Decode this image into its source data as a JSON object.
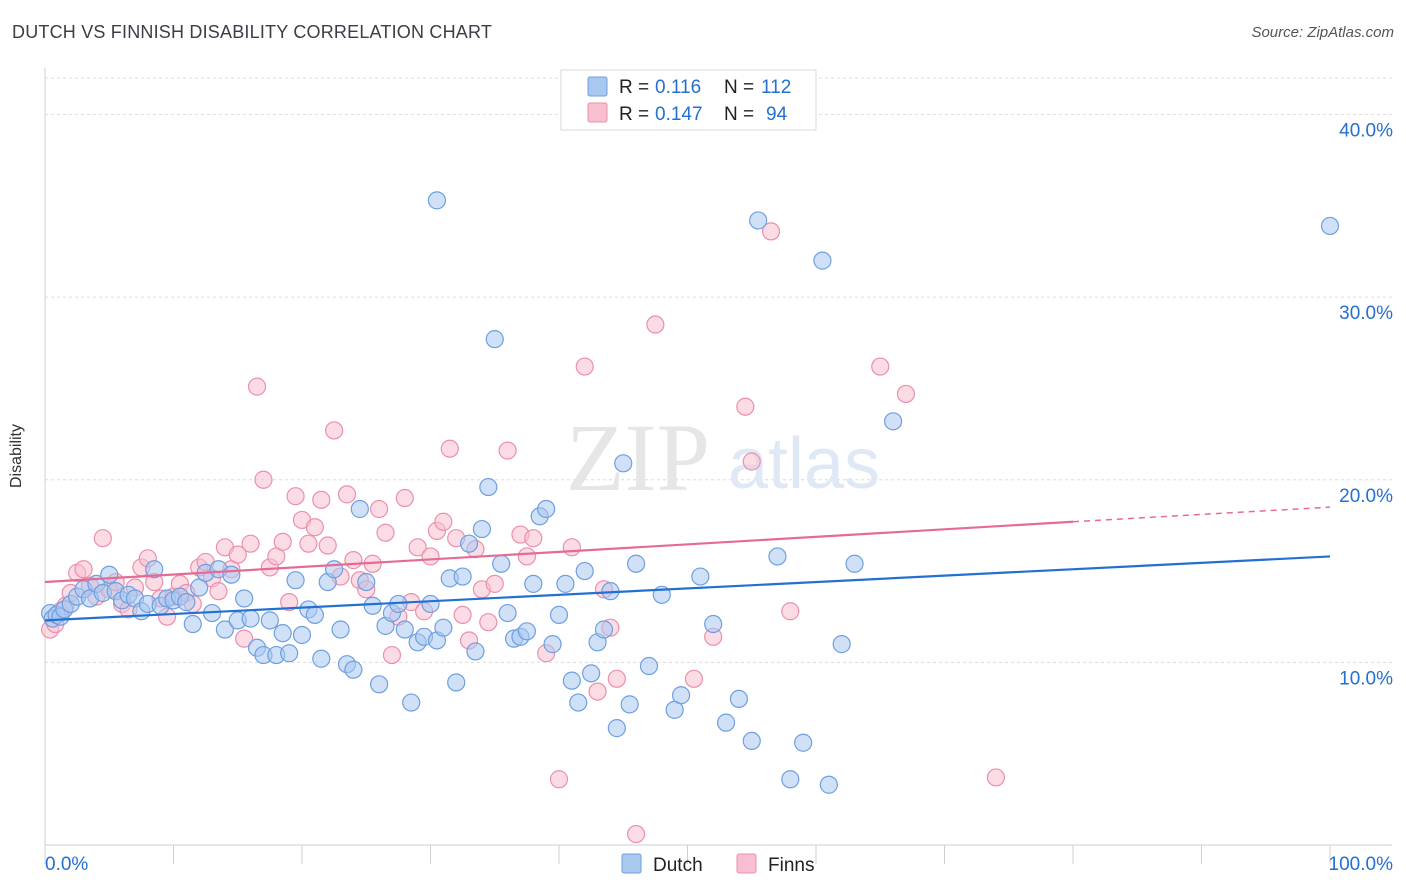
{
  "header": {
    "title": "DUTCH VS FINNISH DISABILITY CORRELATION CHART",
    "source": "Source: ZipAtlas.com"
  },
  "watermark": {
    "part1": "ZIP",
    "part2": "atlas"
  },
  "chart_data": {
    "type": "scatter",
    "title": "DUTCH VS FINNISH DISABILITY CORRELATION CHART",
    "xlabel": "",
    "ylabel": "Disability",
    "xlim": [
      0,
      100
    ],
    "ylim": [
      0,
      42
    ],
    "x_tick_labels": [
      "0.0%",
      "100.0%"
    ],
    "y_ticks": [
      10,
      20,
      30,
      40
    ],
    "y_tick_labels": [
      "10.0%",
      "20.0%",
      "30.0%",
      "40.0%"
    ],
    "grid": true,
    "legend_position": "top-center",
    "bottom_legend": [
      "Dutch",
      "Finns"
    ],
    "stats": [
      {
        "series": "Dutch",
        "r_label": "R =",
        "r": "0.116",
        "n_label": "N =",
        "n": "112"
      },
      {
        "series": "Finns",
        "r_label": "R =",
        "r": "0.147",
        "n_label": "N =",
        "n": "94"
      }
    ],
    "series": [
      {
        "name": "Dutch",
        "color": "#a9c8f0",
        "stroke": "#6e9fe0",
        "trend_color": "#2470d0",
        "trend": {
          "x": [
            0,
            100
          ],
          "y": [
            12.3,
            15.8
          ]
        },
        "points": [
          [
            0.4,
            12.7
          ],
          [
            0.6,
            12.4
          ],
          [
            0.9,
            12.6
          ],
          [
            1.2,
            12.5
          ],
          [
            1.5,
            12.9
          ],
          [
            2.0,
            13.2
          ],
          [
            2.5,
            13.6
          ],
          [
            3.0,
            14.0
          ],
          [
            3.5,
            13.5
          ],
          [
            4.0,
            14.3
          ],
          [
            4.5,
            13.8
          ],
          [
            5.0,
            14.8
          ],
          [
            5.5,
            13.9
          ],
          [
            6.0,
            13.4
          ],
          [
            6.5,
            13.7
          ],
          [
            7.0,
            13.5
          ],
          [
            7.5,
            12.8
          ],
          [
            8.0,
            13.2
          ],
          [
            8.5,
            15.1
          ],
          [
            9.0,
            13.1
          ],
          [
            9.5,
            13.5
          ],
          [
            10.0,
            13.4
          ],
          [
            10.5,
            13.6
          ],
          [
            11.0,
            13.3
          ],
          [
            11.5,
            12.1
          ],
          [
            12.0,
            14.1
          ],
          [
            12.5,
            14.9
          ],
          [
            13.0,
            12.7
          ],
          [
            13.5,
            15.1
          ],
          [
            14.0,
            11.8
          ],
          [
            14.5,
            14.8
          ],
          [
            15.0,
            12.3
          ],
          [
            15.5,
            13.5
          ],
          [
            16.0,
            12.4
          ],
          [
            16.5,
            10.8
          ],
          [
            17.0,
            10.4
          ],
          [
            17.5,
            12.3
          ],
          [
            18.0,
            10.4
          ],
          [
            18.5,
            11.6
          ],
          [
            19.0,
            10.5
          ],
          [
            19.5,
            14.5
          ],
          [
            20.0,
            11.5
          ],
          [
            20.5,
            12.9
          ],
          [
            21.0,
            12.6
          ],
          [
            21.5,
            10.2
          ],
          [
            22.0,
            14.4
          ],
          [
            22.5,
            15.1
          ],
          [
            23.0,
            11.8
          ],
          [
            23.5,
            9.9
          ],
          [
            24.0,
            9.6
          ],
          [
            24.5,
            18.4
          ],
          [
            25.0,
            14.4
          ],
          [
            25.5,
            13.1
          ],
          [
            26.0,
            8.8
          ],
          [
            26.5,
            12.0
          ],
          [
            27.0,
            12.7
          ],
          [
            27.5,
            13.2
          ],
          [
            28.0,
            11.8
          ],
          [
            28.5,
            7.8
          ],
          [
            29.0,
            11.1
          ],
          [
            29.5,
            11.4
          ],
          [
            30.0,
            13.2
          ],
          [
            30.5,
            11.2
          ],
          [
            31.0,
            11.9
          ],
          [
            31.5,
            14.6
          ],
          [
            32.0,
            8.9
          ],
          [
            32.5,
            14.7
          ],
          [
            33.0,
            16.5
          ],
          [
            33.5,
            10.6
          ],
          [
            34.0,
            17.3
          ],
          [
            34.5,
            19.6
          ],
          [
            35.0,
            27.7
          ],
          [
            35.5,
            15.4
          ],
          [
            36.0,
            12.7
          ],
          [
            36.5,
            11.3
          ],
          [
            37.0,
            11.4
          ],
          [
            37.5,
            11.7
          ],
          [
            38.0,
            14.3
          ],
          [
            38.5,
            18.0
          ],
          [
            39.0,
            18.4
          ],
          [
            39.5,
            11.0
          ],
          [
            40.0,
            12.6
          ],
          [
            40.5,
            14.3
          ],
          [
            41.0,
            9.0
          ],
          [
            41.5,
            7.8
          ],
          [
            42.0,
            15.0
          ],
          [
            42.5,
            9.4
          ],
          [
            43.0,
            11.1
          ],
          [
            43.5,
            11.8
          ],
          [
            44.0,
            13.9
          ],
          [
            44.5,
            6.4
          ],
          [
            45.0,
            20.9
          ],
          [
            45.5,
            7.7
          ],
          [
            46.0,
            15.4
          ],
          [
            47.0,
            9.8
          ],
          [
            48.0,
            13.7
          ],
          [
            49.0,
            7.4
          ],
          [
            49.5,
            8.2
          ],
          [
            51.0,
            14.7
          ],
          [
            52.0,
            12.1
          ],
          [
            53.0,
            6.7
          ],
          [
            54.0,
            8.0
          ],
          [
            55.0,
            5.7
          ],
          [
            57.0,
            15.8
          ],
          [
            58.0,
            3.6
          ],
          [
            59.0,
            5.6
          ],
          [
            61.0,
            3.3
          ],
          [
            62.0,
            11.0
          ],
          [
            63.0,
            15.4
          ],
          [
            66.0,
            23.2
          ],
          [
            55.5,
            34.2
          ],
          [
            30.5,
            35.3
          ],
          [
            60.5,
            32.0
          ],
          [
            100.0,
            33.9
          ]
        ]
      },
      {
        "name": "Finns",
        "color": "#f8bfd0",
        "stroke": "#ec8fac",
        "trend_color": "#e56b94",
        "trend": {
          "x": [
            0,
            80
          ],
          "y": [
            14.4,
            17.7
          ]
        },
        "trend_dashed": {
          "x": [
            80,
            100
          ],
          "y": [
            17.7,
            18.5
          ]
        },
        "points": [
          [
            0.4,
            11.8
          ],
          [
            0.8,
            12.1
          ],
          [
            1.2,
            12.8
          ],
          [
            1.6,
            13.1
          ],
          [
            2.0,
            13.8
          ],
          [
            2.5,
            14.9
          ],
          [
            3.0,
            15.1
          ],
          [
            3.5,
            14.2
          ],
          [
            4.0,
            13.6
          ],
          [
            4.5,
            16.8
          ],
          [
            5.0,
            14.0
          ],
          [
            5.5,
            14.4
          ],
          [
            6.0,
            13.2
          ],
          [
            6.5,
            12.9
          ],
          [
            7.0,
            14.1
          ],
          [
            7.5,
            15.2
          ],
          [
            8.0,
            15.7
          ],
          [
            8.5,
            14.4
          ],
          [
            9.0,
            13.5
          ],
          [
            9.5,
            12.5
          ],
          [
            10.0,
            13.6
          ],
          [
            10.5,
            14.3
          ],
          [
            11.0,
            13.8
          ],
          [
            11.5,
            13.2
          ],
          [
            12.0,
            15.2
          ],
          [
            12.5,
            15.5
          ],
          [
            13.0,
            14.6
          ],
          [
            13.5,
            13.9
          ],
          [
            14.0,
            16.3
          ],
          [
            14.5,
            15.1
          ],
          [
            15.0,
            15.9
          ],
          [
            15.5,
            11.3
          ],
          [
            16.0,
            16.5
          ],
          [
            16.5,
            25.1
          ],
          [
            17.0,
            20.0
          ],
          [
            17.5,
            15.2
          ],
          [
            18.0,
            15.8
          ],
          [
            18.5,
            16.6
          ],
          [
            19.0,
            13.3
          ],
          [
            19.5,
            19.1
          ],
          [
            20.0,
            17.8
          ],
          [
            20.5,
            16.5
          ],
          [
            21.0,
            17.4
          ],
          [
            21.5,
            18.9
          ],
          [
            22.0,
            16.4
          ],
          [
            22.5,
            22.7
          ],
          [
            23.0,
            14.7
          ],
          [
            23.5,
            19.2
          ],
          [
            24.0,
            15.6
          ],
          [
            24.5,
            14.5
          ],
          [
            25.0,
            14.0
          ],
          [
            25.5,
            15.4
          ],
          [
            26.0,
            18.4
          ],
          [
            26.5,
            17.1
          ],
          [
            27.0,
            10.4
          ],
          [
            27.5,
            12.5
          ],
          [
            28.0,
            19.0
          ],
          [
            28.5,
            13.3
          ],
          [
            29.0,
            16.3
          ],
          [
            29.5,
            12.8
          ],
          [
            30.0,
            15.8
          ],
          [
            30.5,
            17.2
          ],
          [
            31.0,
            17.7
          ],
          [
            31.5,
            21.7
          ],
          [
            32.0,
            16.8
          ],
          [
            32.5,
            12.6
          ],
          [
            33.0,
            11.2
          ],
          [
            33.5,
            16.2
          ],
          [
            34.0,
            14.0
          ],
          [
            34.5,
            12.2
          ],
          [
            35.0,
            14.3
          ],
          [
            36.0,
            21.6
          ],
          [
            37.0,
            17.0
          ],
          [
            37.5,
            15.8
          ],
          [
            38.0,
            16.8
          ],
          [
            39.0,
            10.5
          ],
          [
            40.0,
            3.6
          ],
          [
            41.0,
            16.3
          ],
          [
            42.0,
            26.2
          ],
          [
            43.0,
            8.4
          ],
          [
            44.0,
            11.9
          ],
          [
            44.5,
            9.1
          ],
          [
            46.0,
            0.6
          ],
          [
            47.5,
            28.5
          ],
          [
            50.5,
            9.1
          ],
          [
            52.0,
            11.4
          ],
          [
            54.5,
            24.0
          ],
          [
            55.0,
            21.0
          ],
          [
            56.5,
            33.6
          ],
          [
            58.0,
            12.8
          ],
          [
            65.0,
            26.2
          ],
          [
            67.0,
            24.7
          ],
          [
            74.0,
            3.7
          ],
          [
            43.5,
            14.0
          ]
        ]
      }
    ]
  }
}
